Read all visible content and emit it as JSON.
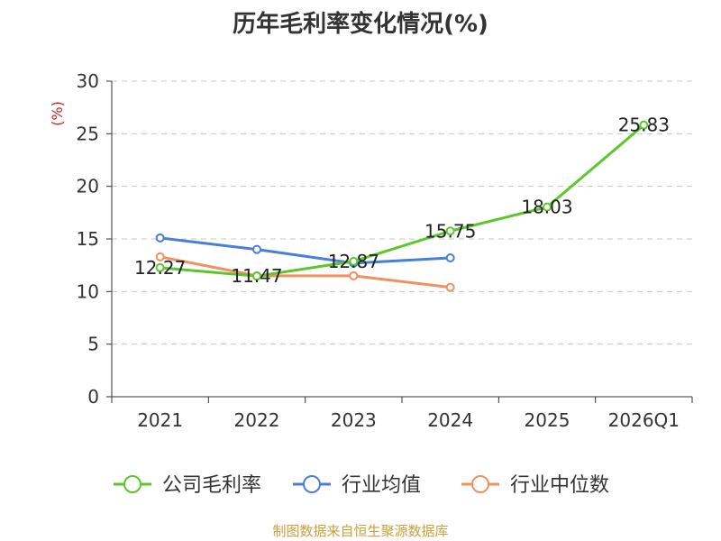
{
  "chart_data": {
    "type": "line",
    "title": "历年毛利率变化情况(%)",
    "ylabel": "(%)",
    "xlabel": "",
    "categories": [
      "2021",
      "2022",
      "2023",
      "2024",
      "2025",
      "2026Q1"
    ],
    "ylim": [
      0,
      30
    ],
    "yticks": [
      0,
      5,
      10,
      15,
      20,
      25,
      30
    ],
    "grid": true,
    "legend_position": "bottom",
    "series": [
      {
        "name": "公司毛利率",
        "color": "#5ac72a",
        "values": [
          12.27,
          11.47,
          12.87,
          15.75,
          18.03,
          25.83
        ],
        "show_labels": true
      },
      {
        "name": "行业均值",
        "color": "#4a7fd8",
        "values": [
          15.1,
          14.0,
          12.7,
          13.2,
          null,
          null
        ],
        "show_labels": false
      },
      {
        "name": "行业中位数",
        "color": "#f39060",
        "values": [
          13.3,
          11.5,
          11.5,
          10.4,
          null,
          null
        ],
        "show_labels": false
      }
    ]
  },
  "source": "制图数据来自恒生聚源数据库"
}
